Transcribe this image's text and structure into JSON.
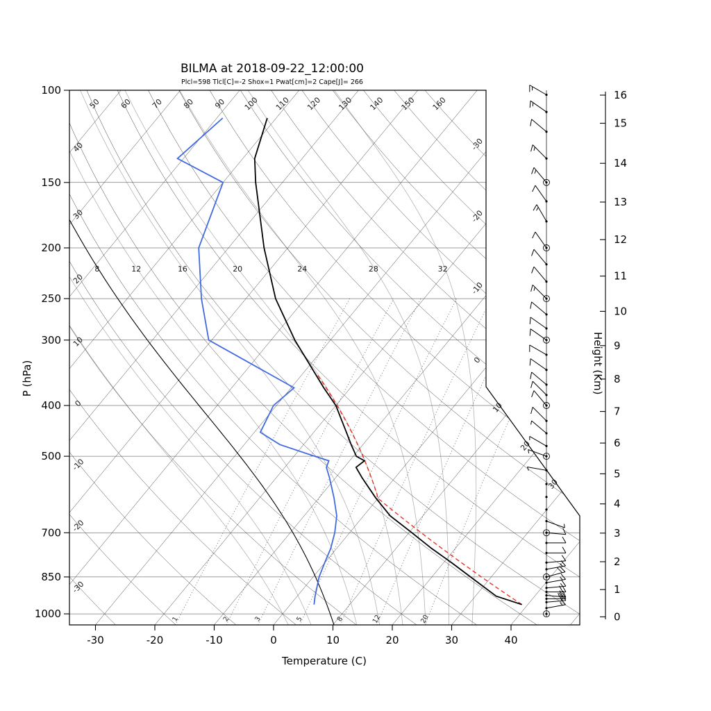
{
  "title": "BILMA at 2018-09-22_12:00:00",
  "params_line": "Plcl=598 Tlcl[C]=-2 Shox=1 Pwat[cm]=2 Cape[J]= 266",
  "axes": {
    "pressure_label": "P (hPa)",
    "pressure_ticks": [
      100,
      150,
      200,
      250,
      300,
      400,
      500,
      700,
      850,
      1000
    ],
    "pressure_grid": [
      150,
      200,
      250,
      300,
      400,
      500,
      700,
      850,
      1000
    ],
    "temp_label": "Temperature (C)",
    "temp_ticks": [
      -30,
      -20,
      -10,
      0,
      10,
      20,
      30,
      40
    ],
    "height_label": "Height (Km)",
    "height_ticks": [
      0,
      1,
      2,
      3,
      4,
      5,
      6,
      7,
      8,
      9,
      10,
      11,
      12,
      13,
      14,
      15,
      16
    ]
  },
  "grid": {
    "isotherms": {
      "start": -120,
      "end": 50,
      "step": 10,
      "right_labels": [
        "-30",
        "-20",
        "-10",
        "0",
        "10",
        "20",
        "30"
      ]
    },
    "dry_adiabats": {
      "start": -30,
      "end": 160,
      "step": 10
    },
    "moist_adiabats": {
      "values": [
        0,
        4,
        8,
        12,
        16,
        20,
        24,
        28,
        32
      ],
      "labeled": [
        8,
        12,
        16,
        20,
        24,
        28,
        32
      ],
      "label_pressure": 224
    },
    "mixing_ratio": {
      "values": [
        1,
        2,
        3,
        5,
        8,
        12,
        20
      ],
      "label_pressure": 1036,
      "top_pressure": 250
    }
  },
  "colors": {
    "grid_line": "#3c3c3c",
    "moist_adiabat": "#b3b3b3",
    "mixing_line": "#666666",
    "temperature": "#000000",
    "dewpoint": "#4169e1",
    "parcel": "#e53222",
    "reference": "#000000",
    "params_text": "#cc5522"
  },
  "chart_data": {
    "type": "skewt-logp",
    "station": "BILMA",
    "datetime": "2018-09-22_12:00:00",
    "parcel_params": {
      "Plcl_hPa": 598,
      "Tlcl_C": -2,
      "Showalter": 1,
      "Pwat_cm": 2,
      "Cape_J": 266
    },
    "sounding": {
      "pressure_hPa": [
        960,
        925,
        850,
        800,
        750,
        700,
        650,
        600,
        550,
        525,
        510,
        500,
        475,
        450,
        400,
        370,
        300,
        250,
        200,
        150,
        135,
        113
      ],
      "temperature_C": [
        39.0,
        33.5,
        26.5,
        21.5,
        16.0,
        10.5,
        4.5,
        -0.5,
        -5.5,
        -8.0,
        -7.5,
        -9.5,
        -12.0,
        -14.5,
        -20.0,
        -24.5,
        -36.0,
        -45.0,
        -54.0,
        -64.5,
        -68.0,
        -71.5
      ],
      "dewpoint_C": [
        4.0,
        3.0,
        1.0,
        0.0,
        -1.0,
        -2.5,
        -4.5,
        -7.5,
        -11.0,
        -13.0,
        -13.5,
        -16.5,
        -24.0,
        -29.0,
        -30.5,
        -29.5,
        -50.5,
        -57.5,
        -65.0,
        -70.0,
        -81.0,
        -79.0
      ]
    },
    "parcel": {
      "p_start_hPa": 960,
      "t_start_C": 39,
      "lcl_hPa": 598,
      "top_hPa": 350
    },
    "reference_moist_adiabat_C": 8,
    "wind_barbs": [
      {
        "p": 102,
        "dir": 300,
        "spd": 15
      },
      {
        "p": 110,
        "dir": 305,
        "spd": 15
      },
      {
        "p": 120,
        "dir": 310,
        "spd": 10
      },
      {
        "p": 135,
        "dir": 315,
        "spd": 15
      },
      {
        "p": 150,
        "dir": 320,
        "spd": 15,
        "ring": true
      },
      {
        "p": 163,
        "dir": 325,
        "spd": 10
      },
      {
        "p": 178,
        "dir": 330,
        "spd": 15
      },
      {
        "p": 200,
        "dir": 325,
        "spd": 10,
        "ring": true
      },
      {
        "p": 215,
        "dir": 320,
        "spd": 10
      },
      {
        "p": 232,
        "dir": 320,
        "spd": 10
      },
      {
        "p": 250,
        "dir": 315,
        "spd": 15,
        "ring": true
      },
      {
        "p": 268,
        "dir": 310,
        "spd": 10
      },
      {
        "p": 285,
        "dir": 305,
        "spd": 10
      },
      {
        "p": 300,
        "dir": 305,
        "spd": 10,
        "ring": true
      },
      {
        "p": 320,
        "dir": 300,
        "spd": 10
      },
      {
        "p": 342,
        "dir": 305,
        "spd": 10
      },
      {
        "p": 365,
        "dir": 310,
        "spd": 10
      },
      {
        "p": 382,
        "dir": 315,
        "spd": 10
      },
      {
        "p": 400,
        "dir": 320,
        "spd": 10,
        "ring": true
      },
      {
        "p": 428,
        "dir": 315,
        "spd": 10
      },
      {
        "p": 452,
        "dir": 310,
        "spd": 5
      },
      {
        "p": 478,
        "dir": 300,
        "spd": 5
      },
      {
        "p": 500,
        "dir": 290,
        "spd": 5,
        "ring": true
      },
      {
        "p": 532,
        "dir": 280,
        "spd": 5
      },
      {
        "p": 565,
        "dir": 0,
        "spd": 0
      },
      {
        "p": 598,
        "dir": 0,
        "spd": 0
      },
      {
        "p": 632,
        "dir": 0,
        "spd": 0
      },
      {
        "p": 665,
        "dir": 110,
        "spd": 5
      },
      {
        "p": 700,
        "dir": 95,
        "spd": 10,
        "ring": true
      },
      {
        "p": 732,
        "dir": 90,
        "spd": 10
      },
      {
        "p": 765,
        "dir": 90,
        "spd": 10
      },
      {
        "p": 798,
        "dir": 85,
        "spd": 10
      },
      {
        "p": 822,
        "dir": 80,
        "spd": 15
      },
      {
        "p": 850,
        "dir": 75,
        "spd": 20,
        "ring": true
      },
      {
        "p": 872,
        "dir": 80,
        "spd": 15
      },
      {
        "p": 892,
        "dir": 85,
        "spd": 15
      },
      {
        "p": 908,
        "dir": 90,
        "spd": 20
      },
      {
        "p": 922,
        "dir": 95,
        "spd": 25
      },
      {
        "p": 936,
        "dir": 90,
        "spd": 20
      },
      {
        "p": 950,
        "dir": 85,
        "spd": 20
      },
      {
        "p": 975,
        "dir": 80,
        "spd": 15
      },
      {
        "p": 1000,
        "dir": 0,
        "spd": 0,
        "ring": true
      }
    ]
  }
}
